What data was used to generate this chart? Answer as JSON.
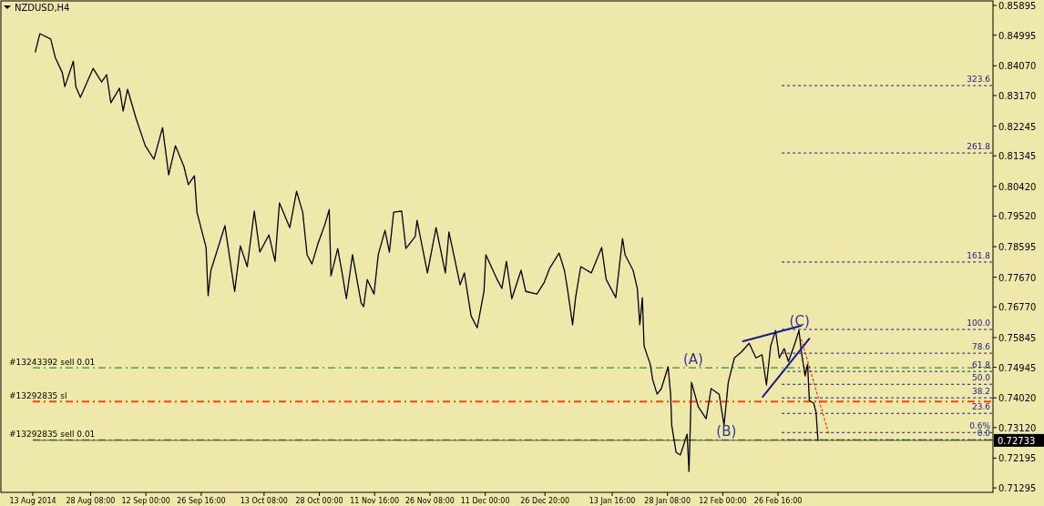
{
  "chart_data": {
    "type": "line",
    "title": "NZDUSD,H4",
    "xlim": [
      "2014-08-13T00:00",
      "2015-04-24T16:00"
    ],
    "ylim": [
      0.7116,
      0.8606
    ],
    "xticks": [
      {
        "value": "2014-08-13T00:00",
        "label": "13 Aug 2014"
      },
      {
        "value": "2014-08-28T08:00",
        "label": "28 Aug 08:00"
      },
      {
        "value": "2014-09-12T00:00",
        "label": "12 Sep 00:00"
      },
      {
        "value": "2014-09-26T16:00",
        "label": "26 Sep 16:00"
      },
      {
        "value": "2014-10-13T08:00",
        "label": "13 Oct 08:00"
      },
      {
        "value": "2014-10-28T00:00",
        "label": "28 Oct 00:00"
      },
      {
        "value": "2014-11-11T16:00",
        "label": "11 Nov 16:00"
      },
      {
        "value": "2014-11-26T08:00",
        "label": "26 Nov 08:00"
      },
      {
        "value": "2014-12-11T00:00",
        "label": "11 Dec 00:00"
      },
      {
        "value": "2014-12-26T20:00",
        "label": "26 Dec 20:00"
      },
      {
        "value": "2015-01-13T16:00",
        "label": "13 Jan 16:00"
      },
      {
        "value": "2015-01-28T08:00",
        "label": "28 Jan 08:00"
      },
      {
        "value": "2015-02-12T00:00",
        "label": "12 Feb 00:00"
      },
      {
        "value": "2015-02-26T16:00",
        "label": "26 Feb 16:00"
      }
    ],
    "yticks": [
      {
        "value": 0.85895,
        "label": "0.85895"
      },
      {
        "value": 0.84995,
        "label": "0.84995"
      },
      {
        "value": 0.8407,
        "label": "0.84070"
      },
      {
        "value": 0.8317,
        "label": "0.83170"
      },
      {
        "value": 0.82245,
        "label": "0.82245"
      },
      {
        "value": 0.81345,
        "label": "0.81345"
      },
      {
        "value": 0.8042,
        "label": "0.80420"
      },
      {
        "value": 0.7952,
        "label": "0.79520"
      },
      {
        "value": 0.78595,
        "label": "0.78595"
      },
      {
        "value": 0.7767,
        "label": "0.77670"
      },
      {
        "value": 0.7677,
        "label": "0.76770"
      },
      {
        "value": 0.75845,
        "label": "0.75845"
      },
      {
        "value": 0.74945,
        "label": "0.74945"
      },
      {
        "value": 0.7402,
        "label": "0.74020"
      },
      {
        "value": 0.7312,
        "label": "0.73120"
      },
      {
        "value": 0.72195,
        "label": "0.72195"
      },
      {
        "value": 0.71295,
        "label": "0.71295"
      }
    ],
    "grid": false,
    "marker": "none",
    "series": [
      {
        "color": "#000000",
        "x": [
          "2014-08-13T16:00",
          "2014-08-14T21:00",
          "2014-08-17T18:00",
          "2014-08-18T23:00",
          "2014-08-20T20:00",
          "2014-08-21T12:00",
          "2014-08-23T18:00",
          "2014-08-24T10:00",
          "2014-08-25T15:00",
          "2014-08-29T00:00",
          "2014-08-31T06:00",
          "2014-09-01T14:00",
          "2014-09-02T17:00",
          "2014-09-05T00:00",
          "2014-09-05T23:00",
          "2014-09-07T03:00",
          "2014-09-09T09:00",
          "2014-09-11T20:00",
          "2014-09-14T03:00",
          "2014-09-16T10:00",
          "2014-09-18T01:00",
          "2014-09-19T20:00",
          "2014-09-22T02:00",
          "2014-09-23T06:00",
          "2014-09-24T21:00",
          "2014-09-25T13:00",
          "2014-09-27T23:00",
          "2014-09-28T12:00",
          "2014-09-29T06:00",
          "2014-10-02T23:00",
          "2014-10-05T13:00",
          "2014-10-07T01:00",
          "2014-10-08T21:00",
          "2014-10-10T18:00",
          "2014-10-12T05:00",
          "2014-10-14T15:00",
          "2014-10-16T06:00",
          "2014-10-17T10:00",
          "2014-10-20T04:00",
          "2014-10-21T23:00",
          "2014-10-23T14:00",
          "2014-10-24T18:00",
          "2014-10-26T01:00",
          "2014-10-27T16:00",
          "2014-10-29T11:00",
          "2014-10-30T15:00",
          "2014-10-31T02:00",
          "2014-11-01T21:00",
          "2014-11-03T01:00",
          "2014-11-04T04:00",
          "2014-11-05T19:00",
          "2014-11-08T02:00",
          "2014-11-08T18:00",
          "2014-11-09T17:00",
          "2014-11-11T12:00",
          "2014-11-12T15:00",
          "2014-11-14T10:00",
          "2014-11-15T14:00",
          "2014-11-16T17:00",
          "2014-11-18T20:00",
          "2014-11-19T23:00",
          "2014-11-22T10:00",
          "2014-11-22T22:00",
          "2014-11-25T16:00",
          "2014-11-27T23:00",
          "2014-11-30T10:00",
          "2014-12-01T09:00",
          "2014-12-04T08:00",
          "2014-12-05T11:00",
          "2014-12-07T06:00",
          "2014-12-08T21:00",
          "2014-12-10T16:00",
          "2014-12-11T04:00",
          "2014-12-14T04:00",
          "2014-12-15T10:00",
          "2014-12-16T15:00",
          "2014-12-18T01:00",
          "2014-12-20T12:00",
          "2014-12-21T18:00",
          "2014-12-24T17:00",
          "2014-12-26T16:00",
          "2014-12-28T01:00",
          "2014-12-30T14:00",
          "2015-01-01T00:00",
          "2015-01-01T19:00",
          "2015-01-03T04:00",
          "2015-01-03T23:00",
          "2015-01-05T08:00",
          "2015-01-08T03:00",
          "2015-01-10T21:00",
          "2015-01-12T02:00",
          "2015-01-14T15:00",
          "2015-01-16T10:00",
          "2015-01-17T02:00",
          "2015-01-19T05:00",
          "2015-01-20T08:00",
          "2015-01-21T00:00",
          "2015-01-21T16:00",
          "2015-01-22T03:00",
          "2015-01-23T18:00",
          "2015-01-24T10:00",
          "2015-01-25T14:00",
          "2015-01-26T17:00",
          "2015-01-28T12:00",
          "2015-01-29T04:00",
          "2015-01-29T11:00",
          "2015-01-30T15:00",
          "2015-01-31T18:00",
          "2015-02-02T13:00",
          "2015-02-03T01:00",
          "2015-02-03T17:00",
          "2015-02-05T12:00",
          "2015-02-07T14:00",
          "2015-02-08T22:00",
          "2015-02-11T01:00",
          "2015-02-12T08:00",
          "2015-02-13T11:00",
          "2015-02-15T02:00",
          "2015-02-16T21:00",
          "2015-02-19T00:00",
          "2015-02-20T19:00",
          "2015-02-22T10:00",
          "2015-02-23T14:00",
          "2015-02-24T17:00",
          "2015-02-26T00:00",
          "2015-02-27T00:00",
          "2015-02-28T07:00",
          "2015-03-01T10:00",
          "2015-03-03T02:00",
          "2015-03-04T05:00",
          "2015-03-04T21:00",
          "2015-03-05T20:00",
          "2015-03-06T12:00",
          "2015-03-06T23:00",
          "2015-03-08T03:00",
          "2015-03-08T18:00",
          "2015-03-09T06:00"
        ],
        "values": [
          0.8449,
          0.8504,
          0.8488,
          0.8432,
          0.8386,
          0.8344,
          0.8421,
          0.8344,
          0.8311,
          0.8399,
          0.8358,
          0.838,
          0.8295,
          0.8339,
          0.827,
          0.8336,
          0.8248,
          0.8165,
          0.8124,
          0.822,
          0.8077,
          0.8165,
          0.8102,
          0.8047,
          0.8074,
          0.7964,
          0.7857,
          0.7711,
          0.7788,
          0.7923,
          0.7724,
          0.7862,
          0.7799,
          0.7967,
          0.7843,
          0.7895,
          0.7815,
          0.7992,
          0.7917,
          0.8027,
          0.7964,
          0.7835,
          0.7807,
          0.787,
          0.7926,
          0.7972,
          0.7771,
          0.7854,
          0.778,
          0.7702,
          0.7835,
          0.7689,
          0.7678,
          0.776,
          0.7716,
          0.7835,
          0.7909,
          0.7843,
          0.7964,
          0.7967,
          0.7854,
          0.789,
          0.7939,
          0.778,
          0.7917,
          0.778,
          0.7904,
          0.7744,
          0.778,
          0.765,
          0.7614,
          0.7724,
          0.7835,
          0.776,
          0.7733,
          0.7815,
          0.7702,
          0.7788,
          0.7724,
          0.7716,
          0.7752,
          0.7793,
          0.784,
          0.7788,
          0.7733,
          0.7623,
          0.7705,
          0.7799,
          0.778,
          0.7857,
          0.776,
          0.7705,
          0.7884,
          0.7835,
          0.7788,
          0.7733,
          0.7623,
          0.7705,
          0.7559,
          0.7504,
          0.7457,
          0.7413,
          0.743,
          0.7496,
          0.7413,
          0.7319,
          0.7237,
          0.7229,
          0.7292,
          0.7179,
          0.7449,
          0.7375,
          0.7339,
          0.743,
          0.7413,
          0.7319,
          0.7449,
          0.7523,
          0.754,
          0.7567,
          0.7523,
          0.7532,
          0.7441,
          0.7559,
          0.7606,
          0.7523,
          0.7551,
          0.7512,
          0.7565,
          0.7606,
          0.754,
          0.7468,
          0.7504,
          0.7394,
          0.7386,
          0.7358,
          0.7273
        ]
      },
      {
        "color": "#1a1a8c",
        "x": [
          "2015-02-17T09:00",
          "2015-03-04T17:00"
        ],
        "values": [
          0.7573,
          0.762
        ]
      },
      {
        "color": "#1a1a8c",
        "x": [
          "2015-02-22T14:00",
          "2015-03-06T23:00"
        ],
        "values": [
          0.7405,
          0.7581
        ]
      },
      {
        "color": "#ff0000",
        "x": [
          "2015-03-04T21:00",
          "2015-03-12T05:00"
        ],
        "values": [
          0.7578,
          0.7289
        ],
        "line_style": "dotted"
      }
    ],
    "ref_lines": [
      {
        "axis": "y",
        "value": 0.8347,
        "color": "#1a1a8c",
        "line_style": "dashed"
      },
      {
        "axis": "y",
        "value": 0.8143,
        "color": "#1a1a8c",
        "line_style": "dashed"
      },
      {
        "axis": "y",
        "value": 0.7813,
        "color": "#1a1a8c",
        "line_style": "dashed"
      },
      {
        "axis": "y",
        "value": 0.7609,
        "color": "#1a1a8c",
        "line_style": "dashed"
      },
      {
        "axis": "y",
        "value": 0.7537,
        "color": "#1a1a8c",
        "line_style": "dashed"
      },
      {
        "axis": "y",
        "value": 0.7482,
        "color": "#1a1a8c",
        "line_style": "dashed"
      },
      {
        "axis": "y",
        "value": 0.7443,
        "color": "#1a1a8c",
        "line_style": "dashed"
      },
      {
        "axis": "y",
        "value": 0.7402,
        "color": "#1a1a8c",
        "line_style": "dashed"
      },
      {
        "axis": "y",
        "value": 0.7355,
        "color": "#1a1a8c",
        "line_style": "dashed"
      },
      {
        "axis": "y",
        "value": 0.7297,
        "color": "#1a1a8c",
        "line_style": "dashed"
      },
      {
        "axis": "y",
        "value": 0.7275,
        "color": "#1a1a8c",
        "line_style": "dashed"
      },
      {
        "axis": "y",
        "value": 0.7493,
        "label": "#13243392 sell 0.01",
        "color": "#008000",
        "line_style": "dashdot"
      },
      {
        "axis": "y",
        "value": 0.7391,
        "label": "#13292835 sl",
        "color": "#ff4500",
        "line_style": "dashdot"
      },
      {
        "axis": "y",
        "value": 0.7275,
        "label": "#13292835 sell 0.01",
        "color": "#2e7d32",
        "line_style": "dashdot"
      },
      {
        "axis": "y",
        "value": 0.72733,
        "label": "0.72733",
        "color": "#000000",
        "line_style": "solid"
      }
    ],
    "annotations": [
      {
        "text": "(A)",
        "x": "2015-02-04T04:00",
        "y": 0.7493
      },
      {
        "text": "(B)",
        "x": "2015-02-12T23:00",
        "y": 0.7275
      },
      {
        "text": "(C)",
        "x": "2015-03-04T09:00",
        "y": 0.7609
      },
      {
        "text": "323.6",
        "x": "2015-04-24T16:00",
        "y": 0.8347
      },
      {
        "text": "261.8",
        "x": "2015-04-24T16:00",
        "y": 0.8143
      },
      {
        "text": "161.8",
        "x": "2015-04-24T16:00",
        "y": 0.7813
      },
      {
        "text": "100.0",
        "x": "2015-04-24T16:00",
        "y": 0.7609
      },
      {
        "text": "78.6",
        "x": "2015-04-24T16:00",
        "y": 0.7537
      },
      {
        "text": "61.8",
        "x": "2015-04-24T16:00",
        "y": 0.7482
      },
      {
        "text": "50.0",
        "x": "2015-04-24T16:00",
        "y": 0.7443
      },
      {
        "text": "38.2",
        "x": "2015-04-24T16:00",
        "y": 0.7402
      },
      {
        "text": "23.6",
        "x": "2015-04-24T16:00",
        "y": 0.7355
      },
      {
        "text": "0.6%",
        "x": "2015-04-24T16:00",
        "y": 0.7297
      },
      {
        "text": "0.0",
        "x": "2015-04-24T16:00",
        "y": 0.7275
      }
    ]
  }
}
